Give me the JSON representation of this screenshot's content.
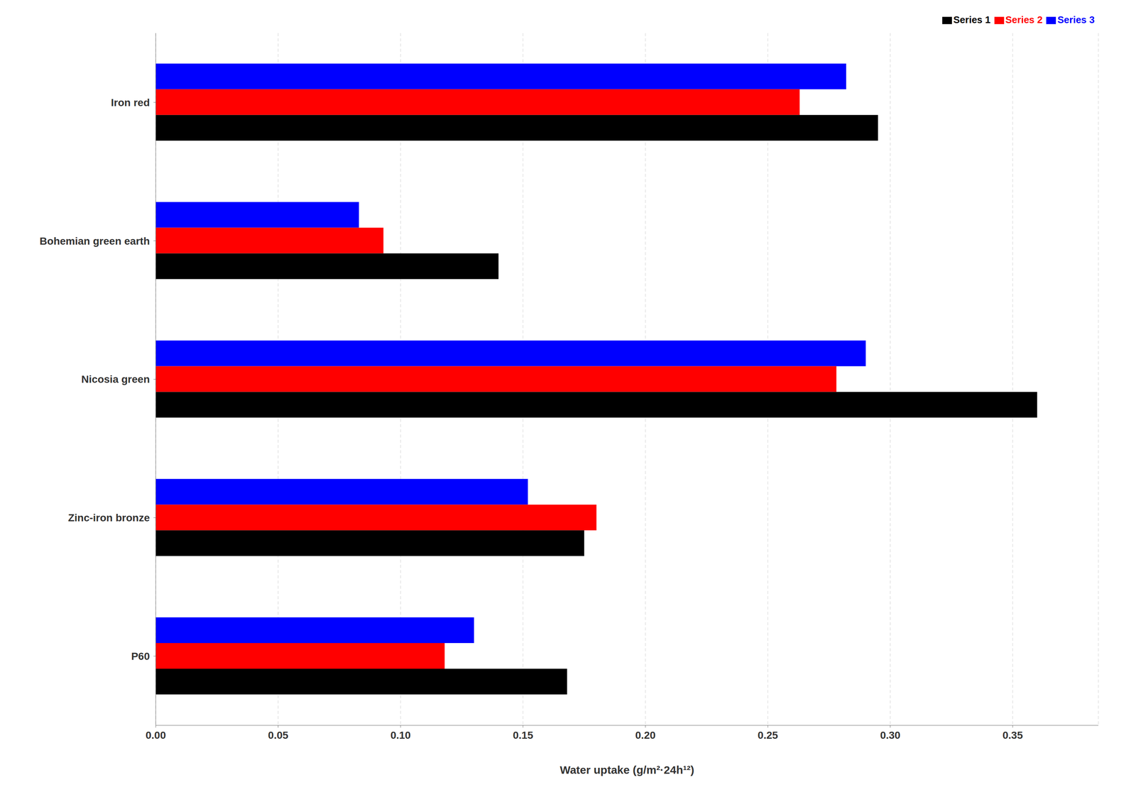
{
  "chart_data": {
    "type": "bar",
    "orientation": "horizontal",
    "categories": [
      "Iron red",
      "Bohemian green earth",
      "Nicosia green",
      "Zinc-iron bronze",
      "P60"
    ],
    "series": [
      {
        "name": "Series 3",
        "color": "#0000ff",
        "values": [
          0.282,
          0.083,
          0.29,
          0.152,
          0.13
        ]
      },
      {
        "name": "Series 2",
        "color": "#ff0000",
        "values": [
          0.263,
          0.093,
          0.278,
          0.18,
          0.118
        ]
      },
      {
        "name": "Series 1",
        "color": "#000000",
        "values": [
          0.295,
          0.14,
          0.36,
          0.175,
          0.168
        ]
      }
    ],
    "xlabel": "Water uptake (g/m²·24h¹²)",
    "xlim": [
      0.0,
      0.385
    ],
    "xticks": [
      {
        "value": 0,
        "label": "0.00"
      },
      0.05,
      {
        "value": 0.1,
        "label": "0.10"
      },
      0.15,
      {
        "value": 0.2,
        "label": "0.20"
      },
      0.25,
      {
        "value": 0.3,
        "label": "0.30"
      },
      0.35
    ],
    "grid": true,
    "legend": "upper right"
  }
}
